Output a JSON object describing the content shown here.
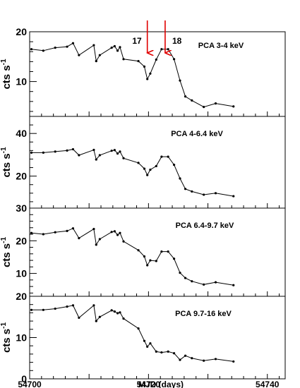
{
  "chart_data": [
    {
      "type": "line",
      "title": "PCA 3-4 keV",
      "ylabel": "cts s",
      "ylabel_sup": "-1",
      "yticks": [
        10,
        20
      ],
      "ylim": [
        3,
        20
      ],
      "xlim": [
        54700,
        54743
      ],
      "x": [
        54700.3,
        54702.3,
        54704.3,
        54706.3,
        54707.3,
        54708.3,
        54710.8,
        54711.2,
        54711.8,
        54713.8,
        54714.3,
        54714.8,
        54715.2,
        54715.8,
        54718.3,
        54719.3,
        54719.8,
        54720.3,
        54721.3,
        54722.2,
        54723.3,
        54724.3,
        54725.3,
        54726.2,
        54727.3,
        54729.3,
        54731.3,
        54734.3
      ],
      "y": [
        16.5,
        16.2,
        16.8,
        17.0,
        17.7,
        15.3,
        17.3,
        14.1,
        15.3,
        16.8,
        17.1,
        16.2,
        16.9,
        14.5,
        14.1,
        13.0,
        10.5,
        11.6,
        14.4,
        16.5,
        16.5,
        14.5,
        10.2,
        7.0,
        6.2,
        4.9,
        5.6,
        5.0
      ],
      "annotations": [
        {
          "label": "17",
          "x": 54719.8
        },
        {
          "label": "18",
          "x": 54722.8
        }
      ]
    },
    {
      "type": "line",
      "title": "PCA 4-6.4 keV",
      "ylabel": "cts s",
      "ylabel_sup": "-1",
      "yticks": [
        20,
        40
      ],
      "ylim": [
        5,
        48
      ],
      "xlim": [
        54700,
        54743
      ],
      "x": [
        54700.3,
        54702.3,
        54704.3,
        54706.3,
        54707.3,
        54708.3,
        54710.8,
        54711.2,
        54711.8,
        54713.8,
        54714.3,
        54714.8,
        54715.2,
        54715.8,
        54718.3,
        54719.3,
        54719.8,
        54720.3,
        54721.3,
        54722.2,
        54723.3,
        54724.3,
        54725.3,
        54726.2,
        54727.3,
        54729.3,
        54731.3,
        54734.3
      ],
      "y": [
        31.0,
        31.0,
        31.5,
        32.0,
        32.6,
        29.8,
        32.3,
        27.8,
        29.8,
        31.9,
        32.2,
        30.6,
        31.5,
        28.4,
        26.2,
        23.5,
        20.5,
        23.0,
        24.7,
        29.1,
        29.1,
        25.3,
        18.9,
        14.0,
        12.8,
        11.3,
        12.0,
        10.6
      ]
    },
    {
      "type": "line",
      "title": "PCA 6.4-9.7 keV",
      "ylabel": "cts s",
      "ylabel_sup": "-1",
      "yticks": [
        10,
        20,
        30
      ],
      "ylim": [
        3,
        30
      ],
      "xlim": [
        54700,
        54743
      ],
      "x": [
        54700.3,
        54702.3,
        54704.3,
        54706.3,
        54707.3,
        54708.3,
        54710.8,
        54711.2,
        54711.8,
        54713.8,
        54714.3,
        54714.8,
        54715.2,
        54715.8,
        54718.3,
        54719.3,
        54719.8,
        54720.3,
        54721.3,
        54722.2,
        54723.3,
        54724.3,
        54725.3,
        54726.2,
        54727.3,
        54729.3,
        54731.3,
        54734.3
      ],
      "y": [
        22.4,
        22.0,
        22.6,
        23.0,
        23.8,
        20.8,
        23.6,
        18.8,
        20.5,
        22.7,
        22.9,
        21.8,
        22.4,
        19.8,
        17.1,
        15.2,
        12.5,
        14.0,
        13.8,
        16.7,
        16.7,
        14.5,
        10.2,
        8.6,
        7.6,
        6.6,
        7.3,
        6.4
      ]
    },
    {
      "type": "line",
      "title": "PCA 9.7-16 keV",
      "ylabel": "cts s",
      "ylabel_sup": "-1",
      "yticks": [
        0,
        10,
        20
      ],
      "ylim": [
        0,
        20
      ],
      "xlim": [
        54700,
        54743
      ],
      "xticks": [
        54700,
        54720,
        54740
      ],
      "xlabel": "MJD (days)",
      "x": [
        54700.3,
        54702.3,
        54704.3,
        54706.3,
        54707.3,
        54708.3,
        54710.8,
        54711.2,
        54711.8,
        54713.8,
        54714.3,
        54714.8,
        54715.2,
        54715.8,
        54718.3,
        54719.3,
        54719.8,
        54720.3,
        54721.3,
        54722.2,
        54723.3,
        54724.3,
        54725.3,
        54726.2,
        54727.3,
        54729.3,
        54731.3,
        54734.3
      ],
      "y": [
        16.7,
        16.7,
        17.0,
        17.5,
        17.8,
        14.8,
        17.8,
        14.0,
        15.0,
        16.6,
        16.3,
        15.9,
        16.1,
        14.6,
        12.2,
        9.2,
        7.8,
        8.6,
        6.6,
        6.4,
        6.6,
        6.2,
        4.6,
        5.6,
        5.0,
        4.4,
        4.8,
        4.2
      ]
    }
  ]
}
